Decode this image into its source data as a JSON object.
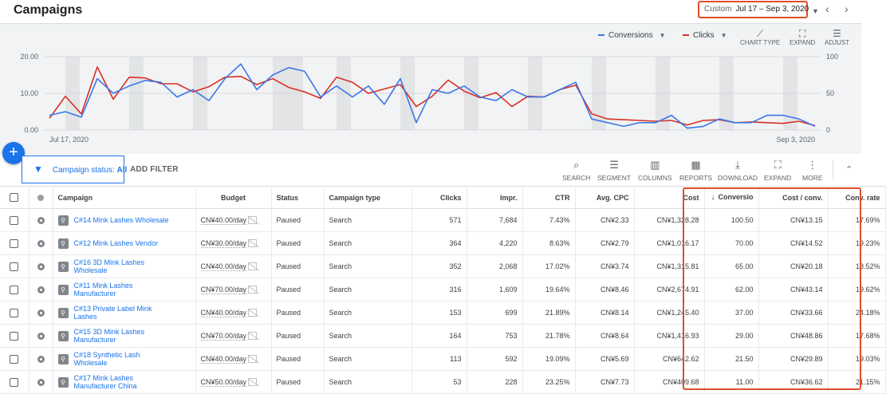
{
  "header": {
    "title": "Campaigns",
    "date_range_label": "Custom",
    "date_range_value": "Jul 17 – Sep 3, 2020"
  },
  "chart_controls": {
    "legend": [
      {
        "name": "Conversions",
        "color": "#3b78e7"
      },
      {
        "name": "Clicks",
        "color": "#d93025"
      }
    ],
    "tools": [
      "CHART TYPE",
      "EXPAND",
      "ADJUST"
    ]
  },
  "chart_data": {
    "type": "line",
    "x_start_label": "Jul 17, 2020",
    "x_end_label": "Sep 3, 2020",
    "left_axis": {
      "ticks": [
        "20.00",
        "10.00",
        "0.00"
      ],
      "range": [
        0,
        20
      ]
    },
    "right_axis": {
      "ticks": [
        "100",
        "50",
        "0"
      ],
      "range": [
        0,
        100
      ]
    },
    "series": [
      {
        "name": "Conversions",
        "axis": "left",
        "color": "#3b78e7",
        "values": [
          4,
          5,
          3.5,
          14,
          10,
          12,
          13.5,
          13,
          9,
          11,
          8,
          14,
          18,
          11,
          15,
          17,
          16,
          9,
          12,
          9,
          12,
          7,
          14,
          2,
          11,
          10,
          12,
          9,
          8,
          11,
          9,
          9,
          11,
          13,
          3,
          2,
          1,
          2,
          2,
          4,
          0.5,
          1,
          3,
          2,
          2,
          4,
          4,
          3,
          1
        ]
      },
      {
        "name": "Clicks",
        "axis": "right",
        "color": "#d93025",
        "values": [
          16,
          46,
          22,
          86,
          42,
          72,
          71,
          63,
          63,
          52,
          59,
          72,
          73,
          62,
          70,
          58,
          52,
          43,
          72,
          65,
          50,
          56,
          62,
          32,
          46,
          68,
          53,
          44,
          51,
          32,
          46,
          45,
          55,
          61,
          22,
          15,
          14,
          13,
          12,
          13,
          7,
          13,
          14,
          10,
          11,
          10,
          9,
          12,
          6
        ]
      }
    ]
  },
  "toolbar": {
    "add_button": "+",
    "filter_label": "Campaign status:",
    "filter_value": "All",
    "add_filter": "ADD FILTER",
    "tools": [
      "SEARCH",
      "SEGMENT",
      "COLUMNS",
      "REPORTS",
      "DOWNLOAD",
      "EXPAND",
      "MORE"
    ]
  },
  "table": {
    "columns": [
      "Campaign",
      "Budget",
      "Status",
      "Campaign type",
      "Clicks",
      "Impr.",
      "CTR",
      "Avg. CPC",
      "Cost",
      "Conversio",
      "Cost / conv.",
      "Conv. rate"
    ],
    "rows": [
      {
        "campaign": "C#14 Mink Lashes Wholesale",
        "budget": "CN¥40.00/day",
        "status": "Paused",
        "type": "Search",
        "clicks": "571",
        "impr": "7,684",
        "ctr": "7.43%",
        "cpc": "CN¥2.33",
        "cost": "CN¥1,328.28",
        "conv": "100.50",
        "cost_conv": "CN¥13.15",
        "conv_rate": "17.69%"
      },
      {
        "campaign": "C#12 Mink Lashes Vendor",
        "budget": "CN¥30.00/day",
        "status": "Paused",
        "type": "Search",
        "clicks": "364",
        "impr": "4,220",
        "ctr": "8.63%",
        "cpc": "CN¥2.79",
        "cost": "CN¥1,016.17",
        "conv": "70.00",
        "cost_conv": "CN¥14.52",
        "conv_rate": "19.23%"
      },
      {
        "campaign": "C#16 3D Mink Lashes Wholesale",
        "budget": "CN¥40.00/day",
        "status": "Paused",
        "type": "Search",
        "clicks": "352",
        "impr": "2,068",
        "ctr": "17.02%",
        "cpc": "CN¥3.74",
        "cost": "CN¥1,315.81",
        "conv": "65.00",
        "cost_conv": "CN¥20.18",
        "conv_rate": "18.52%"
      },
      {
        "campaign": "C#11 Mink Lashes Manufacturer",
        "budget": "CN¥70.00/day",
        "status": "Paused",
        "type": "Search",
        "clicks": "316",
        "impr": "1,609",
        "ctr": "19.64%",
        "cpc": "CN¥8.46",
        "cost": "CN¥2,674.91",
        "conv": "62.00",
        "cost_conv": "CN¥43.14",
        "conv_rate": "19.62%"
      },
      {
        "campaign": "C#13 Private Label Mink Lashes",
        "budget": "CN¥40.00/day",
        "status": "Paused",
        "type": "Search",
        "clicks": "153",
        "impr": "699",
        "ctr": "21.89%",
        "cpc": "CN¥8.14",
        "cost": "CN¥1,245.40",
        "conv": "37.00",
        "cost_conv": "CN¥33.66",
        "conv_rate": "24.18%"
      },
      {
        "campaign": "C#15 3D Mink Lashes Manufacturer",
        "budget": "CN¥70.00/day",
        "status": "Paused",
        "type": "Search",
        "clicks": "164",
        "impr": "753",
        "ctr": "21.78%",
        "cpc": "CN¥8.64",
        "cost": "CN¥1,416.93",
        "conv": "29.00",
        "cost_conv": "CN¥48.86",
        "conv_rate": "17.68%"
      },
      {
        "campaign": "C#18 Synthetic Lash Wholesale",
        "budget": "CN¥40.00/day",
        "status": "Paused",
        "type": "Search",
        "clicks": "113",
        "impr": "592",
        "ctr": "19.09%",
        "cpc": "CN¥5.69",
        "cost": "CN¥642.62",
        "conv": "21.50",
        "cost_conv": "CN¥29.89",
        "conv_rate": "19.03%"
      },
      {
        "campaign": "C#17 Mink Lashes Manufacturer China",
        "budget": "CN¥50.00/day",
        "status": "Paused",
        "type": "Search",
        "clicks": "53",
        "impr": "228",
        "ctr": "23.25%",
        "cpc": "CN¥7.73",
        "cost": "CN¥409.68",
        "conv": "11.00",
        "cost_conv": "CN¥36.62",
        "conv_rate": "21.15%"
      }
    ]
  }
}
